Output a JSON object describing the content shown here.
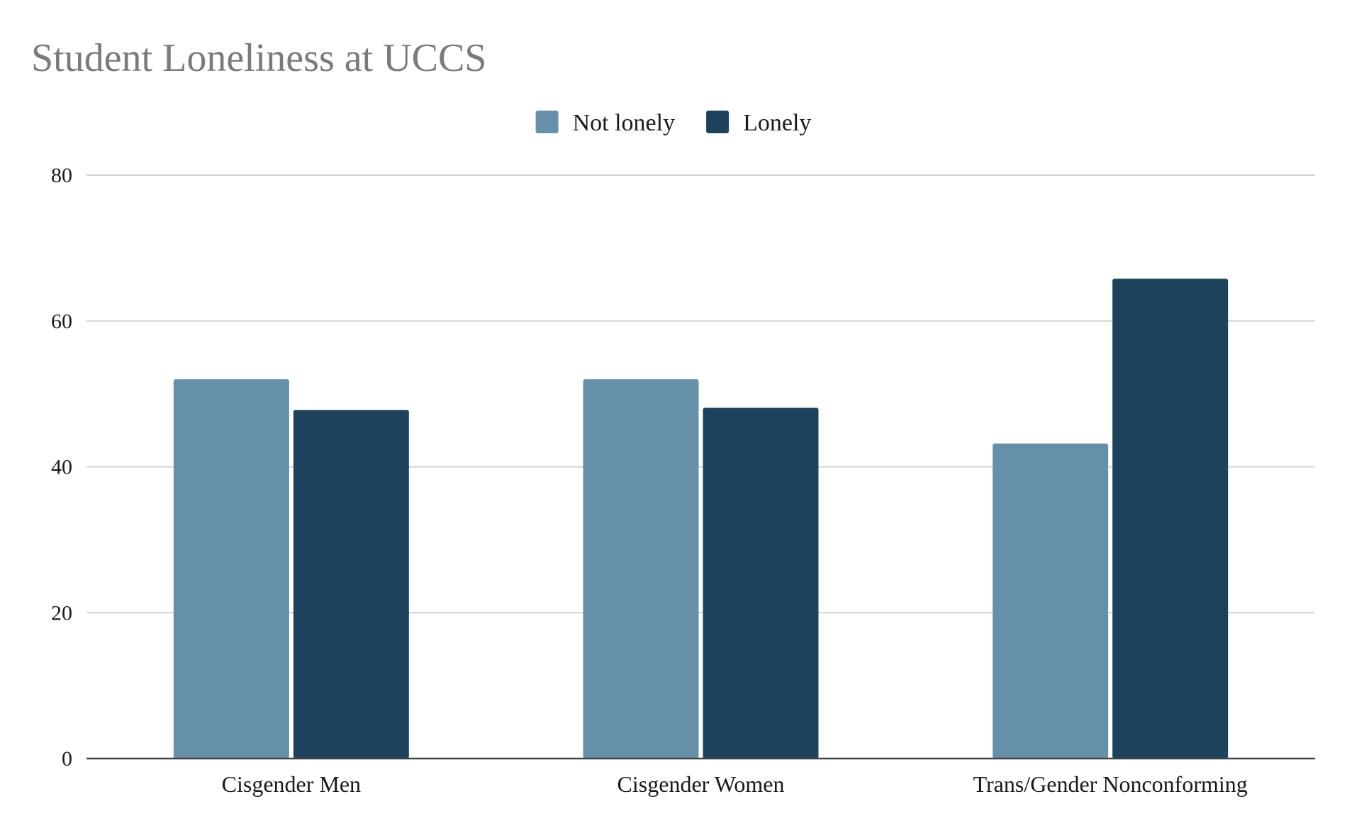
{
  "chart_data": {
    "type": "bar",
    "title": "Student Loneliness at UCCS",
    "xlabel": "",
    "ylabel": "",
    "categories": [
      "Cisgender Men",
      "Cisgender Women",
      "Trans/Gender Nonconforming"
    ],
    "series": [
      {
        "name": "Not lonely",
        "color": "#6690aa",
        "values": [
          52,
          52,
          43.2
        ]
      },
      {
        "name": "Lonely",
        "color": "#1d435c",
        "values": [
          47.8,
          48.1,
          65.8
        ]
      }
    ],
    "ylim": [
      0,
      80
    ],
    "yticks": [
      0,
      20,
      40,
      60,
      80
    ],
    "grid": true,
    "legend_position": "top-center"
  }
}
